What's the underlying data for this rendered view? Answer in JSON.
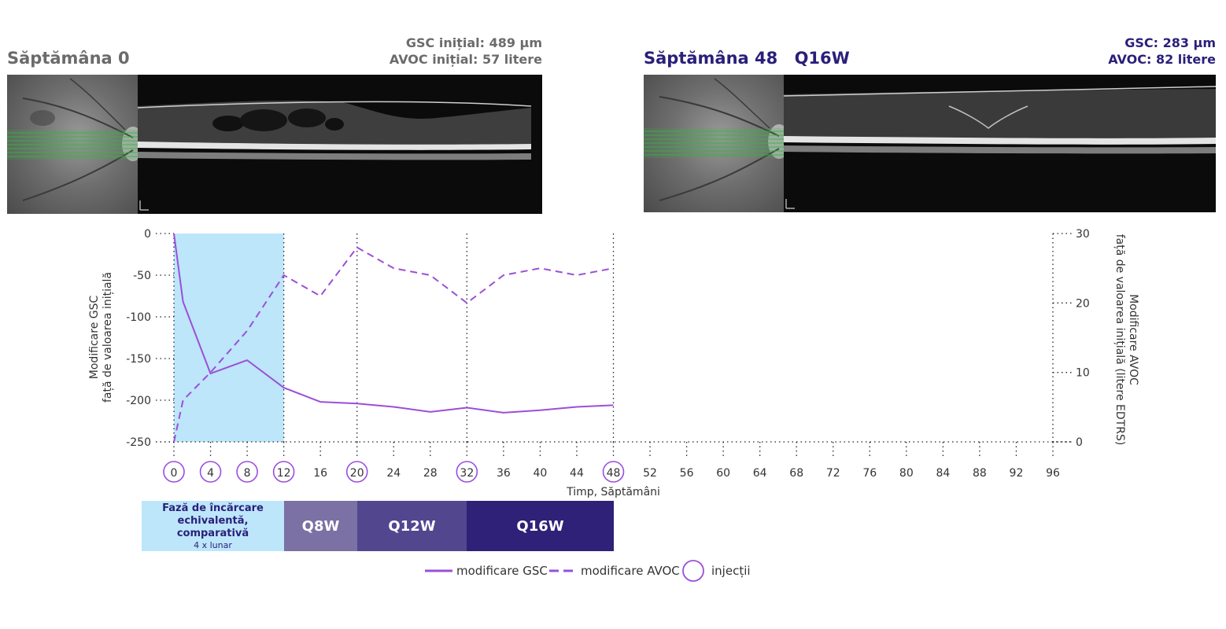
{
  "colors": {
    "title_left": "#6b6b6b",
    "title_right": "#2a1f7a",
    "line": "#9b4fd9",
    "loading_phase": "#bde6fa",
    "q8w": "#7b71a4",
    "q12w": "#52478f",
    "q16w": "#2e2177"
  },
  "left_panel": {
    "title": "Săptămâna 0",
    "stat_gsc": "GSC inițial: 489 µm",
    "stat_avoc": "AVOC inițial: 57 litere"
  },
  "right_panel": {
    "title": "Săptămâna 48",
    "regimen": "Q16W",
    "stat_gsc": "GSC: 283 µm",
    "stat_avoc": "AVOC: 82 litere"
  },
  "phases": {
    "loading_title": "Fază de încărcare echivalentă, comparativă",
    "loading_sub": "4 x lunar",
    "q8w": "Q8W",
    "q12w": "Q12W",
    "q16w": "Q16W"
  },
  "legend": {
    "gsc": "modificare GSC",
    "avoc": "modificare AVOC",
    "injections": "injecții"
  },
  "chart_data": {
    "type": "line",
    "xlabel": "Timp, Săptămâni",
    "ylabel_left": [
      "Modificare GSC",
      "față de valoarea inițială"
    ],
    "ylabel_right": [
      "Modificare AVOC",
      "față de valoarea inițială (litere EDTRS)"
    ],
    "xlim": [
      0,
      96
    ],
    "ylim_left": [
      -250,
      0
    ],
    "ylim_right": [
      0,
      30
    ],
    "x_ticks": [
      0,
      4,
      8,
      12,
      16,
      20,
      24,
      28,
      32,
      36,
      40,
      44,
      48,
      52,
      56,
      60,
      64,
      68,
      72,
      76,
      80,
      84,
      88,
      92,
      96
    ],
    "y_ticks_left": [
      0,
      -50,
      -100,
      -150,
      -200,
      -250
    ],
    "y_ticks_right": [
      0,
      10,
      20,
      30
    ],
    "injection_weeks": [
      0,
      4,
      8,
      12,
      20,
      32,
      48
    ],
    "vertical_dotted_weeks": [
      0,
      12,
      20,
      32,
      48,
      96
    ],
    "series": [
      {
        "name": "modificare GSC",
        "axis": "left",
        "style": "solid",
        "x": [
          0,
          1,
          4,
          8,
          12,
          16,
          20,
          24,
          28,
          32,
          36,
          40,
          44,
          48
        ],
        "values": [
          0,
          -82,
          -168,
          -152,
          -185,
          -202,
          -204,
          -208,
          -214,
          -209,
          -215,
          -212,
          -208,
          -206
        ]
      },
      {
        "name": "modificare AVOC",
        "axis": "right",
        "style": "dashed",
        "x": [
          0,
          1,
          4,
          8,
          12,
          16,
          20,
          24,
          28,
          32,
          36,
          40,
          44,
          48
        ],
        "values": [
          0,
          6,
          10,
          16,
          24,
          21,
          28,
          25,
          24,
          20,
          24,
          25,
          24,
          25
        ]
      }
    ]
  }
}
